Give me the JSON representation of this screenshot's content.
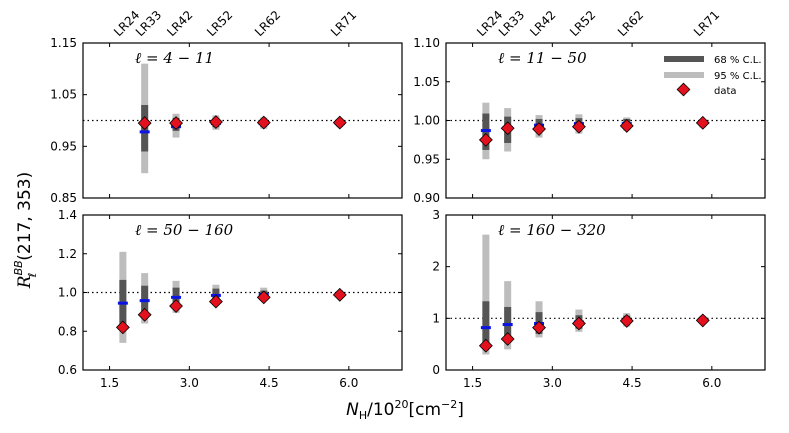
{
  "chart_data": [
    {
      "type": "scatter",
      "panel": "top-left",
      "annotation": "ℓ = 4 − 11",
      "xlim": [
        1.0,
        7.0
      ],
      "ylim": [
        0.85,
        1.15
      ],
      "yticks": [
        "0.85",
        "0.95",
        "1.05",
        "1.15"
      ],
      "ytick_values": [
        0.85,
        0.95,
        1.05,
        1.15
      ],
      "xticks": [],
      "x": [
        2.16,
        2.75,
        3.5,
        4.4,
        5.83
      ],
      "data": [
        0.995,
        0.995,
        0.997,
        0.996,
        0.996
      ],
      "model": [
        0.978,
        0.988,
        0.994,
        0.994,
        0.994
      ],
      "ci68": [
        [
          0.94,
          1.03
        ],
        [
          0.98,
          1.005
        ],
        [
          0.987,
          1.004
        ],
        [
          0.988,
          1.002
        ],
        [
          0.99,
          1.0
        ]
      ],
      "ci95": [
        [
          0.898,
          1.11
        ],
        [
          0.967,
          1.013
        ],
        [
          0.982,
          1.01
        ],
        [
          0.984,
          1.006
        ],
        [
          0.987,
          1.004
        ]
      ],
      "reference": 1.0
    },
    {
      "type": "scatter",
      "panel": "top-right",
      "annotation": "ℓ = 11 − 50",
      "xlim": [
        1.0,
        7.0
      ],
      "ylim": [
        0.9,
        1.1
      ],
      "yticks": [
        "0.90",
        "0.95",
        "1.00",
        "1.05",
        "1.10"
      ],
      "ytick_values": [
        0.9,
        0.95,
        1.0,
        1.05,
        1.1
      ],
      "xticks": [],
      "x": [
        1.75,
        2.16,
        2.75,
        3.5,
        4.4,
        5.83
      ],
      "data": [
        0.975,
        0.99,
        0.989,
        0.992,
        0.993,
        0.997
      ],
      "model": [
        0.987,
        0.991,
        0.994,
        0.996,
        0.996,
        0.998
      ],
      "ci68": [
        [
          0.962,
          1.009
        ],
        [
          0.971,
          1.005
        ],
        [
          0.985,
          1.002
        ],
        [
          0.988,
          1.003
        ],
        [
          0.99,
          1.002
        ],
        [
          0.993,
          1.0
        ]
      ],
      "ci95": [
        [
          0.95,
          1.023
        ],
        [
          0.96,
          1.016
        ],
        [
          0.978,
          1.007
        ],
        [
          0.983,
          1.008
        ],
        [
          0.987,
          1.004
        ],
        [
          0.991,
          1.001
        ]
      ],
      "reference": 1.0
    },
    {
      "type": "scatter",
      "panel": "bottom-left",
      "annotation": "ℓ = 50 − 160",
      "xlim": [
        1.0,
        7.0
      ],
      "ylim": [
        0.6,
        1.4
      ],
      "yticks": [
        "0.6",
        "0.8",
        "1.0",
        "1.2",
        "1.4"
      ],
      "ytick_values": [
        0.6,
        0.8,
        1.0,
        1.2,
        1.4
      ],
      "xticks": [
        "1.5",
        "3.0",
        "4.5",
        "6.0"
      ],
      "xtick_values": [
        1.5,
        3.0,
        4.5,
        6.0
      ],
      "x": [
        1.75,
        2.16,
        2.75,
        3.5,
        4.4,
        5.83
      ],
      "data": [
        0.82,
        0.885,
        0.93,
        0.953,
        0.975,
        0.988
      ],
      "model": [
        0.945,
        0.958,
        0.975,
        0.985,
        0.99,
        0.993
      ],
      "ci68": [
        [
          0.82,
          1.065
        ],
        [
          0.875,
          1.035
        ],
        [
          0.92,
          1.025
        ],
        [
          0.95,
          1.02
        ],
        [
          0.97,
          1.01
        ],
        [
          0.98,
          1.005
        ]
      ],
      "ci95": [
        [
          0.74,
          1.21
        ],
        [
          0.84,
          1.1
        ],
        [
          0.895,
          1.06
        ],
        [
          0.94,
          1.04
        ],
        [
          0.96,
          1.025
        ],
        [
          0.975,
          1.01
        ]
      ],
      "reference": 1.0
    },
    {
      "type": "scatter",
      "panel": "bottom-right",
      "annotation": "ℓ = 160 − 320",
      "xlim": [
        1.0,
        7.0
      ],
      "ylim": [
        0,
        3
      ],
      "yticks": [
        "0",
        "1",
        "2",
        "3"
      ],
      "ytick_values": [
        0,
        1,
        2,
        3
      ],
      "xticks": [
        "1.5",
        "3.0",
        "4.5",
        "6.0"
      ],
      "xtick_values": [
        1.5,
        3.0,
        4.5,
        6.0
      ],
      "x": [
        1.75,
        2.16,
        2.75,
        3.5,
        4.4,
        5.83
      ],
      "data": [
        0.47,
        0.6,
        0.82,
        0.9,
        0.95,
        0.96
      ],
      "model": [
        0.82,
        0.88,
        0.9,
        0.93,
        0.96,
        0.98
      ],
      "ci68": [
        [
          0.45,
          1.33
        ],
        [
          0.58,
          1.22
        ],
        [
          0.7,
          1.12
        ],
        [
          0.8,
          1.06
        ],
        [
          0.88,
          1.05
        ],
        [
          0.92,
          1.02
        ]
      ],
      "ci95": [
        [
          0.3,
          2.62
        ],
        [
          0.4,
          1.72
        ],
        [
          0.63,
          1.33
        ],
        [
          0.74,
          1.17
        ],
        [
          0.84,
          1.1
        ],
        [
          0.9,
          1.05
        ]
      ],
      "reference": 1.0
    }
  ],
  "top_labels": [
    "LR24",
    "LR33",
    "LR42",
    "LR52",
    "LR62",
    "LR71"
  ],
  "top_label_x": [
    1.75,
    2.16,
    2.75,
    3.5,
    4.4,
    5.83
  ],
  "xlabel": "N_H/10^20[cm^-2]",
  "xlabel_parts": {
    "base": "N",
    "sub": "H",
    "mid": "/10",
    "sup": "20",
    "unit": "[cm",
    "unit_sup": "−2",
    "unit_end": "]"
  },
  "ylabel_parts": {
    "base": "R",
    "sup": "BB",
    "sub": "ℓ",
    "args": "(217, 353)"
  },
  "legend": {
    "location": "top-right",
    "ci68_label": "68 % C.L.",
    "ci95_label": "95 % C.L.",
    "data_label": "data"
  },
  "colors": {
    "ci68": "#555555",
    "ci95": "#bdbdbd",
    "model": "#0a14e6",
    "data_fill": "#e3101e",
    "data_edge": "#000000"
  }
}
